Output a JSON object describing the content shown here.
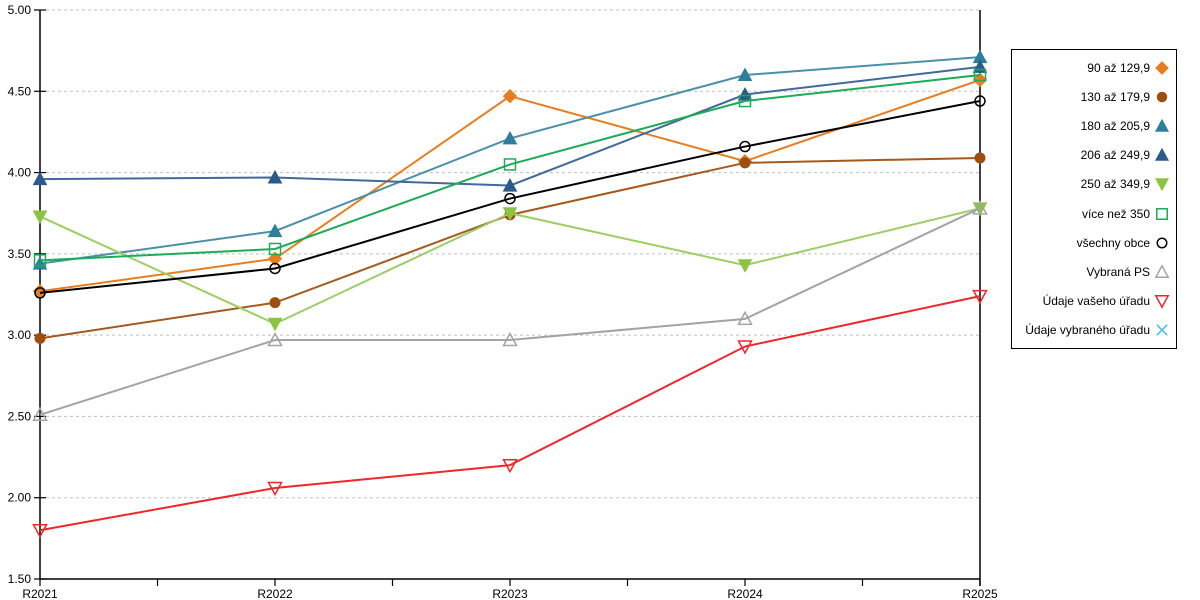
{
  "chart_data": {
    "type": "line",
    "title": "",
    "x": [
      "R2021",
      "R2022",
      "R2023",
      "R2024",
      "R2025"
    ],
    "ylim": [
      1.5,
      5.0
    ],
    "y_tick_step": 0.5,
    "y_ticks": [
      "5.00",
      "4.50",
      "4.00",
      "3.50",
      "3.00",
      "2.50",
      "2.00",
      "1.50"
    ],
    "grid": "horizontal-dashed",
    "legend_position": "right",
    "series": [
      {
        "name": "90 až 129,9",
        "marker": "diamond",
        "style": "filled",
        "color": "#E87D1E",
        "values": [
          3.27,
          3.47,
          4.47,
          4.07,
          4.57
        ]
      },
      {
        "name": "130 až 179,9",
        "marker": "circle",
        "style": "filled",
        "color": "#9C4F0F",
        "line_color": "#A6591C",
        "values": [
          2.98,
          3.2,
          3.74,
          4.06,
          4.09
        ]
      },
      {
        "name": "180 až 205,9",
        "marker": "triangle-up",
        "style": "filled",
        "color": "#2E7F9B",
        "line_color": "#4A90A8",
        "values": [
          3.44,
          3.64,
          4.21,
          4.6,
          4.71
        ]
      },
      {
        "name": "206 až 249,9",
        "marker": "triangle-up",
        "style": "filled",
        "color": "#2D5A8C",
        "line_color": "#41699B",
        "values": [
          3.96,
          3.97,
          3.92,
          4.48,
          4.65
        ]
      },
      {
        "name": "250 až 349,9",
        "marker": "triangle-down",
        "style": "filled",
        "color": "#8AC440",
        "line_color": "#9CCE63",
        "values": [
          3.73,
          3.07,
          3.75,
          3.43,
          3.78
        ]
      },
      {
        "name": "více než 350",
        "marker": "square",
        "style": "open",
        "color": "#1CAB57",
        "values": [
          3.46,
          3.53,
          4.05,
          4.44,
          4.6
        ]
      },
      {
        "name": "všechny obce",
        "marker": "circle",
        "style": "open",
        "color": "#000000",
        "values": [
          3.26,
          3.41,
          3.84,
          4.16,
          4.44
        ]
      },
      {
        "name": "Vybraná PS",
        "marker": "triangle-up",
        "style": "open",
        "color": "#A3A3A3",
        "values": [
          2.51,
          2.97,
          2.97,
          3.1,
          3.78
        ]
      },
      {
        "name": "Údaje vašeho úřadu",
        "marker": "triangle-down",
        "style": "open",
        "color": "#F0262B",
        "values": [
          1.8,
          2.06,
          2.2,
          2.93,
          3.24
        ]
      },
      {
        "name": "Údaje vybraného úřadu",
        "marker": "x",
        "style": "open",
        "color": "#3CBEE6",
        "values": []
      }
    ]
  }
}
